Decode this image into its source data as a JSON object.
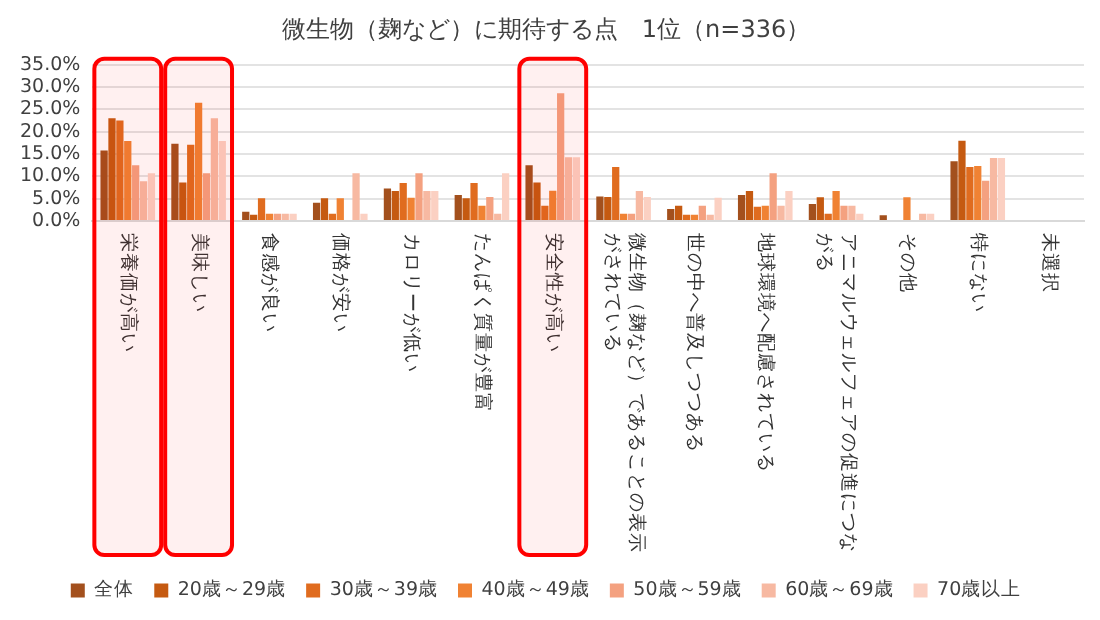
{
  "chart_data": {
    "type": "bar",
    "title": "微生物（麹など）に期待する点　1位（n=336）",
    "categories": [
      "栄養価が高い",
      "美味しい",
      "食感が良い",
      "価格が安い",
      "カロリーが低い",
      "たんぱく質量が豊富",
      "安全性が高い",
      "微生物（麹など）であることの表示がされている",
      "世の中へ普及しつつある",
      "地球環境へ配慮されている",
      "アニマルウェルフェアの促進につながる",
      "その他",
      "特にない",
      "未選択"
    ],
    "series": [
      {
        "name": "全体",
        "color": "#a3501d",
        "values": [
          15.8,
          17.3,
          2.1,
          4.1,
          7.3,
          5.8,
          12.5,
          5.5,
          2.7,
          5.8,
          3.8,
          1.3,
          13.4,
          0
        ]
      },
      {
        "name": "20歳～29歳",
        "color": "#c55a11",
        "values": [
          23.0,
          8.6,
          1.4,
          5.1,
          6.7,
          5.1,
          8.6,
          5.4,
          3.4,
          6.7,
          5.3,
          0,
          18.0,
          0
        ]
      },
      {
        "name": "30歳～39歳",
        "color": "#e06c1f",
        "values": [
          22.5,
          17.1,
          5.1,
          1.6,
          8.5,
          8.5,
          3.4,
          12.1,
          1.4,
          3.2,
          1.6,
          0,
          12.1,
          0
        ]
      },
      {
        "name": "40歳～49歳",
        "color": "#f08233",
        "values": [
          17.9,
          26.5,
          1.6,
          5.1,
          5.2,
          3.4,
          6.8,
          1.6,
          1.4,
          3.4,
          6.7,
          5.3,
          12.3,
          0
        ]
      },
      {
        "name": "50歳～59歳",
        "color": "#f4a180",
        "values": [
          12.5,
          10.7,
          1.6,
          0,
          10.7,
          5.4,
          28.6,
          1.6,
          3.4,
          10.7,
          3.4,
          0,
          9.0,
          0
        ]
      },
      {
        "name": "60歳～69歳",
        "color": "#f7b9a2",
        "values": [
          8.9,
          23.0,
          1.6,
          10.7,
          6.7,
          1.6,
          14.3,
          6.7,
          1.4,
          3.4,
          3.4,
          1.6,
          14.1,
          0
        ]
      },
      {
        "name": "70歳以上",
        "color": "#fbd0c2",
        "values": [
          10.7,
          17.9,
          1.6,
          1.6,
          6.7,
          10.7,
          14.3,
          5.4,
          5.2,
          6.7,
          1.6,
          1.6,
          14.1,
          0
        ]
      }
    ],
    "ylim": [
      0,
      35
    ],
    "yticks": [
      {
        "value": 0,
        "label": "0.0%"
      },
      {
        "value": 5,
        "label": "5.0%"
      },
      {
        "value": 10,
        "label": "10.0%"
      },
      {
        "value": 15,
        "label": "15.0%"
      },
      {
        "value": 20,
        "label": "20.0%"
      },
      {
        "value": 25,
        "label": "25.0%"
      },
      {
        "value": 30,
        "label": "30.0%"
      },
      {
        "value": 35,
        "label": "35.0%"
      }
    ],
    "grid": "y",
    "legend": "bottom",
    "bands": [
      {
        "axis": "x",
        "from": "栄養価が高い",
        "to": "栄養価が高い",
        "color": "#ff0000"
      },
      {
        "axis": "x",
        "from": "美味しい",
        "to": "美味しい",
        "color": "#ff0000"
      },
      {
        "axis": "x",
        "from": "安全性が高い",
        "to": "安全性が高い",
        "color": "#ff0000"
      }
    ]
  }
}
